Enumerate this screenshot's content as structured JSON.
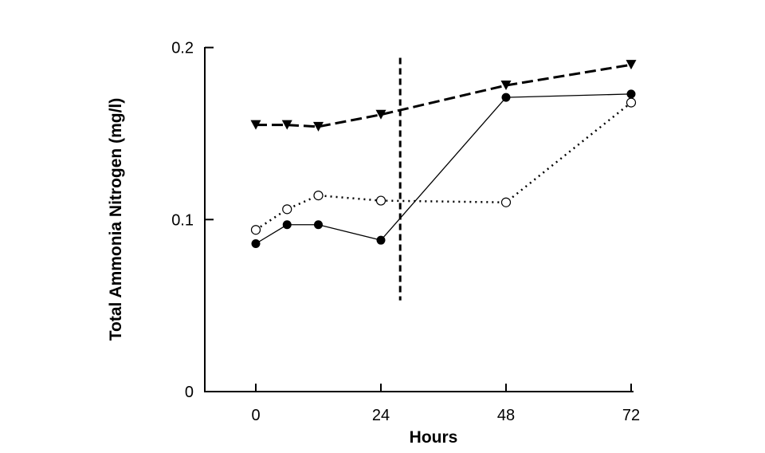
{
  "chart_data": {
    "type": "line",
    "title": "",
    "xlabel": "Hours",
    "ylabel": "Total Ammonia Nitrogen (mg/l)",
    "xlim": [
      -10,
      72
    ],
    "ylim": [
      0,
      0.2
    ],
    "xticks": [
      0,
      24,
      48,
      72
    ],
    "xtick_labels": [
      "0",
      "24",
      "48",
      "72"
    ],
    "yticks": [
      0,
      0.1,
      0.2
    ],
    "ytick_labels": [
      "0",
      "0.1",
      "0.2"
    ],
    "grid": false,
    "x": [
      0,
      6,
      12,
      24,
      48,
      72
    ],
    "series": [
      {
        "marker": "filled-triangle-down",
        "line": "dashed",
        "color": "#000000",
        "values": [
          0.155,
          0.155,
          0.154,
          0.161,
          0.178,
          0.19
        ]
      },
      {
        "marker": "filled-circle",
        "line": "solid",
        "color": "#000000",
        "values": [
          0.086,
          0.097,
          0.097,
          0.088,
          0.171,
          0.173
        ]
      },
      {
        "marker": "open-circle",
        "line": "dotted",
        "color": "#000000",
        "values": [
          0.094,
          0.106,
          0.114,
          0.111,
          0.11,
          0.168
        ]
      }
    ],
    "vertical_line": {
      "x": 27.7,
      "y_range": [
        0.053,
        0.194
      ],
      "line": "dashed"
    }
  }
}
